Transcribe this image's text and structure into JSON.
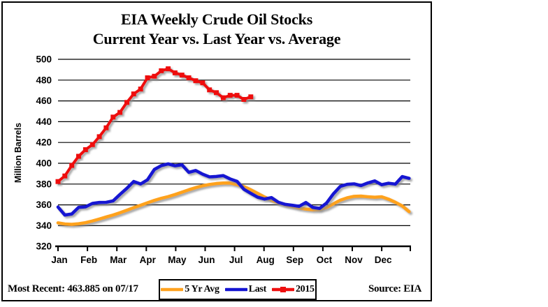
{
  "title": {
    "line1": "EIA Weekly Crude Oil Stocks",
    "line2": "Current Year vs. Last Year vs. Average"
  },
  "y_axis": {
    "label": "Million Barrels",
    "ticks": [
      500,
      480,
      460,
      440,
      420,
      400,
      380,
      360,
      340,
      320
    ]
  },
  "x_axis": {
    "months": [
      "Jan",
      "Feb",
      "Mar",
      "Apr",
      "May",
      "Jun",
      "Jul",
      "Aug",
      "Sep",
      "Oct",
      "Nov",
      "Dec"
    ]
  },
  "footer": {
    "most_recent": "Most Recent: 463.885 on 07/17",
    "source": "Source: EIA"
  },
  "colors": {
    "avg": "#FFA21F",
    "last": "#1414D2",
    "current": "#EE0F0F",
    "axis": "#000000",
    "shadow": "#8a8a8a"
  },
  "legend": [
    {
      "label": "5 Yr Avg",
      "color": "#FFA21F",
      "marker": false
    },
    {
      "label": "Last",
      "color": "#1414D2",
      "marker": false
    },
    {
      "label": "2015",
      "color": "#EE0F0F",
      "marker": true
    }
  ],
  "chart_data": {
    "type": "line",
    "title": "EIA Weekly Crude Oil Stocks — Current Year vs. Last Year vs. Average",
    "xlabel": "",
    "ylabel": "Million Barrels",
    "ylim": [
      320,
      500
    ],
    "grid": true,
    "legend_position": "bottom",
    "x_unit": "weekly, Jan–Dec",
    "categories": [
      "Jan",
      "Feb",
      "Mar",
      "Apr",
      "May",
      "Jun",
      "Jul",
      "Aug",
      "Sep",
      "Oct",
      "Nov",
      "Dec"
    ],
    "most_recent": {
      "value": 463.885,
      "date": "07/17"
    },
    "series": [
      {
        "name": "5 Yr Avg",
        "color": "#FFA21F",
        "marker": "none",
        "values": [
          342.7,
          341.6,
          341.2,
          341.8,
          342.9,
          344.5,
          346.4,
          348.3,
          350.2,
          352.4,
          354.8,
          357.3,
          359.6,
          362.0,
          364.3,
          366.3,
          367.9,
          369.9,
          372.2,
          374.5,
          376.6,
          378.3,
          379.6,
          380.5,
          381.0,
          381.1,
          379.5,
          377.5,
          374.5,
          371.0,
          367.5,
          364.5,
          362.0,
          360.0,
          358.5,
          357.0,
          356.0,
          355.3,
          355.5,
          357.5,
          361.0,
          364.5,
          366.8,
          368.2,
          368.4,
          367.8,
          367.3,
          367.8,
          365.5,
          362.5,
          359.0,
          353.5
        ]
      },
      {
        "name": "Last",
        "color": "#1414D2",
        "marker": "none",
        "values": [
          357.9,
          350.2,
          351.2,
          357.6,
          358.1,
          361.4,
          362.3,
          362.4,
          363.8,
          370.0,
          375.9,
          382.5,
          380.1,
          384.1,
          394.1,
          397.7,
          399.4,
          397.6,
          398.5,
          391.3,
          393.0,
          389.5,
          386.9,
          387.3,
          388.1,
          384.9,
          382.6,
          375.0,
          371.1,
          367.4,
          365.6,
          367.0,
          362.5,
          360.5,
          359.6,
          358.6,
          362.3,
          357.6,
          356.6,
          361.7,
          370.6,
          377.7,
          379.7,
          380.2,
          378.5,
          381.1,
          383.0,
          379.3,
          380.8,
          379.9,
          387.2,
          385.5
        ]
      },
      {
        "name": "2015",
        "color": "#EE0F0F",
        "marker": "square",
        "values": [
          382.4,
          387.8,
          397.9,
          406.7,
          413.1,
          417.9,
          425.6,
          434.1,
          444.4,
          448.9,
          458.5,
          466.7,
          471.4,
          482.2,
          483.7,
          489.0,
          490.9,
          487.0,
          484.8,
          482.2,
          479.4,
          477.4,
          470.6,
          467.9,
          463.0,
          465.4,
          465.4,
          461.4,
          463.885
        ]
      }
    ]
  }
}
